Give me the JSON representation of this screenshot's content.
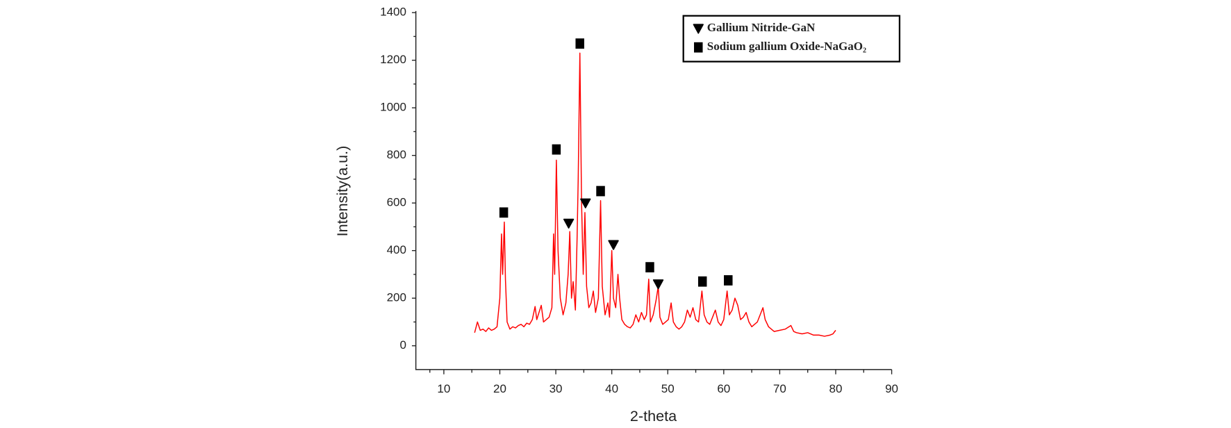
{
  "chart_data": {
    "type": "line",
    "x_label": "2-theta",
    "y_label": "Intensity(a.u.)",
    "color": "#ff0000",
    "xlim": [
      5,
      90
    ],
    "xticks": [
      10,
      20,
      30,
      40,
      50,
      60,
      70,
      80,
      90
    ],
    "ylim": [
      -100,
      1400
    ],
    "yticks": [
      0,
      200,
      400,
      600,
      800,
      1000,
      1200,
      1400
    ],
    "legend": "upper right",
    "x": [
      15.5,
      16,
      16.5,
      17,
      17.5,
      18,
      18.5,
      19,
      19.5,
      20,
      20.3,
      20.5,
      20.8,
      21,
      21.3,
      21.8,
      22.3,
      22.8,
      23.3,
      23.8,
      24.3,
      24.8,
      25.3,
      25.8,
      26.3,
      26.6,
      27,
      27.4,
      27.8,
      28.3,
      28.8,
      29.3,
      29.6,
      29.8,
      30.1,
      30.4,
      30.8,
      31.3,
      31.8,
      32.2,
      32.5,
      32.8,
      33.1,
      33.5,
      33.8,
      34,
      34.3,
      34.6,
      34.9,
      35.2,
      35.5,
      35.9,
      36.3,
      36.7,
      37.1,
      37.6,
      38,
      38.3,
      38.8,
      39.3,
      39.6,
      40,
      40.3,
      40.7,
      41.1,
      41.4,
      41.8,
      42.3,
      42.8,
      43.3,
      43.8,
      44.3,
      44.8,
      45.3,
      45.8,
      46.2,
      46.6,
      46.9,
      47.4,
      47.9,
      48.3,
      48.6,
      49.1,
      49.6,
      50.1,
      50.6,
      51,
      51.5,
      52,
      52.5,
      53,
      53.5,
      54,
      54.5,
      55,
      55.5,
      56.1,
      56.5,
      57,
      57.5,
      58,
      58.5,
      59,
      59.5,
      60,
      60.6,
      61,
      61.5,
      62,
      62.5,
      63,
      63.5,
      64,
      64.5,
      65,
      65.5,
      66,
      66.5,
      67,
      67.4,
      68,
      68.5,
      69,
      70,
      71,
      72,
      72.5,
      73,
      74,
      75,
      76,
      77,
      78,
      79,
      79.5,
      80
    ],
    "values": [
      55,
      100,
      65,
      70,
      60,
      75,
      65,
      70,
      80,
      200,
      470,
      300,
      520,
      280,
      100,
      70,
      80,
      75,
      85,
      90,
      80,
      95,
      90,
      110,
      165,
      110,
      140,
      170,
      100,
      110,
      120,
      160,
      470,
      300,
      780,
      400,
      200,
      130,
      180,
      300,
      480,
      200,
      270,
      150,
      450,
      700,
      1230,
      600,
      300,
      560,
      250,
      160,
      180,
      230,
      140,
      200,
      610,
      250,
      130,
      180,
      120,
      400,
      200,
      160,
      300,
      200,
      110,
      90,
      80,
      75,
      90,
      130,
      100,
      140,
      110,
      130,
      280,
      100,
      130,
      190,
      250,
      120,
      90,
      100,
      110,
      180,
      100,
      80,
      70,
      80,
      100,
      150,
      120,
      160,
      110,
      100,
      230,
      130,
      100,
      90,
      120,
      150,
      100,
      85,
      110,
      230,
      130,
      150,
      200,
      170,
      110,
      120,
      140,
      100,
      80,
      90,
      100,
      130,
      160,
      110,
      80,
      70,
      60,
      65,
      70,
      85,
      60,
      55,
      50,
      55,
      45,
      45,
      40,
      45,
      50,
      65
    ],
    "phases": [
      {
        "name": "Gallium Nitride-GaN",
        "marker": "triangle-down",
        "x": [
          32.3,
          35.3,
          40.3,
          48.3
        ],
        "values": [
          515,
          600,
          425,
          260
        ]
      },
      {
        "name": "Sodium gallium Oxide-NaGaO₂",
        "marker": "square",
        "x": [
          20.7,
          30.1,
          34.3,
          38,
          46.8,
          56.2,
          60.8
        ],
        "values": [
          560,
          825,
          1270,
          650,
          330,
          270,
          275
        ]
      }
    ]
  }
}
